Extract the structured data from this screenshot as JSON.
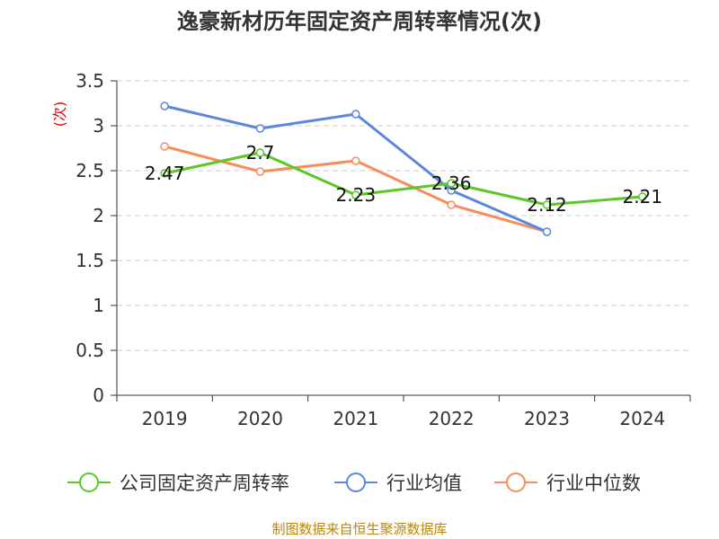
{
  "colors": {
    "company": "#5cc726",
    "industry_avg": "#5b86de",
    "industry_median": "#f98c5c",
    "axis": "#333333",
    "grid": "#cccccc",
    "unit": "#dd0000",
    "source": "#b8860b"
  },
  "chart_data": {
    "type": "line",
    "title": "逸豪新材历年固定资产周转率情况(次)",
    "ylabel": "(次)",
    "xlabel": "",
    "categories": [
      "2019",
      "2020",
      "2021",
      "2022",
      "2023",
      "2024"
    ],
    "ylim": [
      0,
      3.5
    ],
    "yticks": [
      0,
      0.5,
      1,
      1.5,
      2,
      2.5,
      3,
      3.5
    ],
    "ytick_labels": [
      "0",
      "0.5",
      "1",
      "1.5",
      "2",
      "2.5",
      "3",
      "3.5"
    ],
    "grid": true,
    "legend_position": "bottom",
    "series": [
      {
        "name": "公司固定资产周转率",
        "values": [
          2.47,
          2.7,
          2.23,
          2.36,
          2.12,
          2.21
        ],
        "labels": [
          "2.47",
          "2.7",
          "2.23",
          "2.36",
          "2.12",
          "2.21"
        ],
        "color_key": "company"
      },
      {
        "name": "行业均值",
        "values": [
          3.22,
          2.97,
          3.13,
          2.28,
          1.82,
          null
        ],
        "color_key": "industry_avg"
      },
      {
        "name": "行业中位数",
        "values": [
          2.77,
          2.49,
          2.61,
          2.12,
          1.82,
          null
        ],
        "color_key": "industry_median"
      }
    ]
  },
  "source": "制图数据来自恒生聚源数据库"
}
